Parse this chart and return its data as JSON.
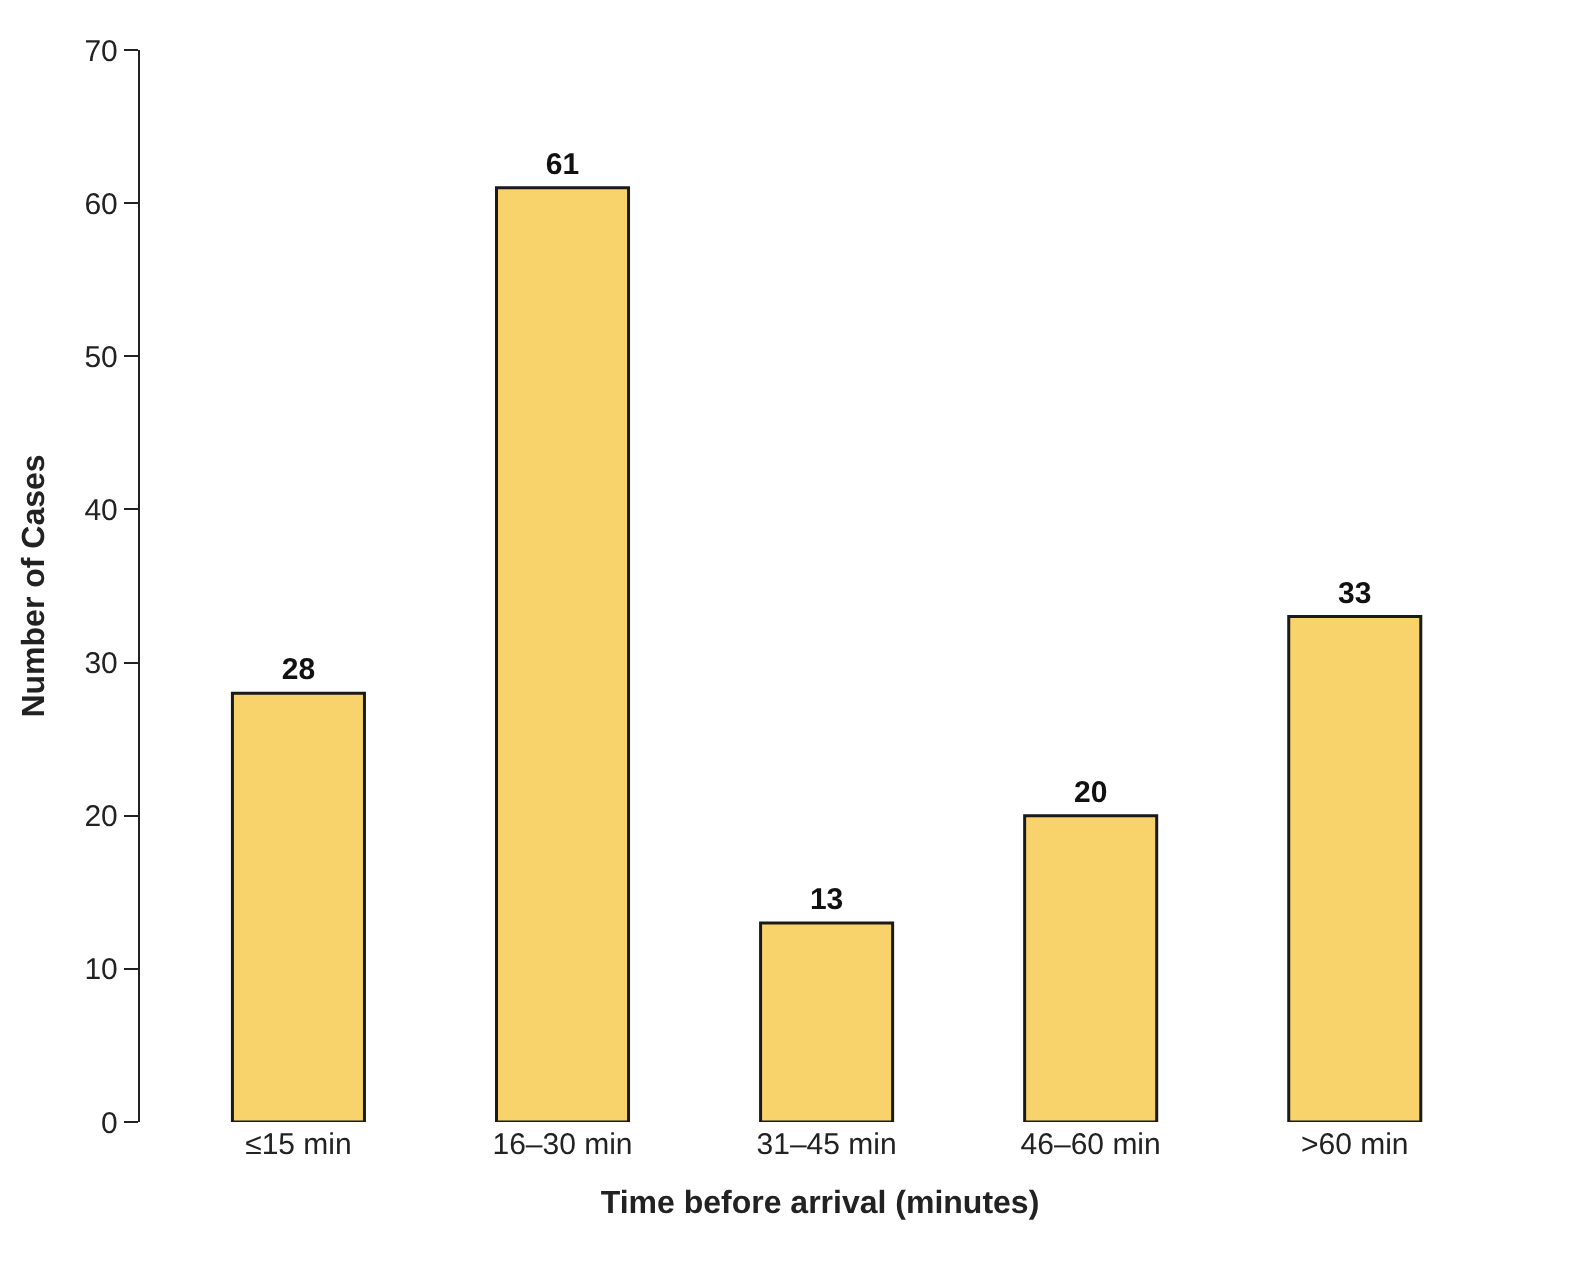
{
  "chart_data": {
    "type": "bar",
    "xlabel": "Time before arrival (minutes)",
    "ylabel": "Number of Cases",
    "categories": [
      "≤15 min",
      "16–30 min",
      "31–45 min",
      "46–60 min",
      ">60 min"
    ],
    "values": [
      28,
      61,
      13,
      20,
      33
    ],
    "color": "#f8d36b",
    "data_labels": true,
    "ylim": [
      0,
      70
    ],
    "yticks": [
      0,
      10,
      20,
      30,
      40,
      50,
      60,
      70
    ]
  }
}
